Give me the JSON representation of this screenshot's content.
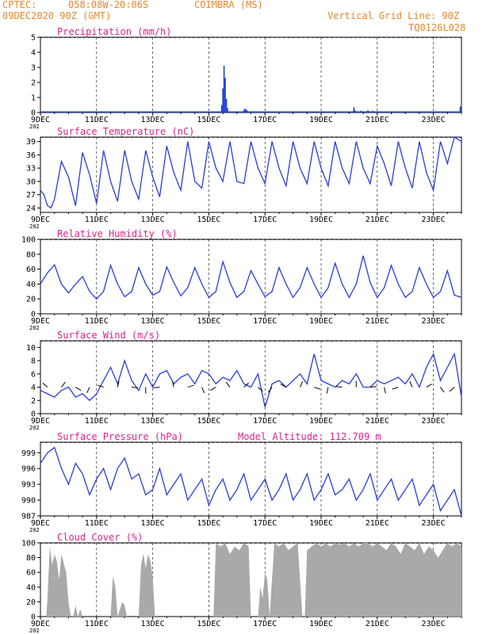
{
  "header": {
    "source": "CPTEC:",
    "coords": "058:08W-20:06S",
    "station": "COIMBRA (MS)",
    "run": "09DEC2020 90Z (GMT)",
    "grid_label": "Vertical Grid Line: 90Z",
    "code": "TQ0126L028"
  },
  "x_axis": {
    "hours_total": 360,
    "tick_labels": [
      "9DEC",
      "11DEC",
      "13DEC",
      "15DEC",
      "17DEC",
      "19DEC",
      "21DEC",
      "23DEC"
    ],
    "tick_hours": [
      0,
      48,
      96,
      144,
      192,
      240,
      288,
      336
    ],
    "year_stub": "202"
  },
  "chart_data": [
    {
      "id": "precipitation",
      "type": "bar",
      "title": "Precipitation (mm/h)",
      "ylim": [
        0,
        5
      ],
      "yticks": [
        0,
        1,
        2,
        3,
        4,
        5
      ],
      "bars": [
        {
          "x": 155.0,
          "y": 0.5
        },
        {
          "x": 156.0,
          "y": 1.6
        },
        {
          "x": 157.0,
          "y": 3.1
        },
        {
          "x": 158.0,
          "y": 2.3
        },
        {
          "x": 159.0,
          "y": 0.9
        },
        {
          "x": 160.0,
          "y": 0.3
        },
        {
          "x": 174.0,
          "y": 0.18
        },
        {
          "x": 175.0,
          "y": 0.25
        },
        {
          "x": 176.0,
          "y": 0.2
        },
        {
          "x": 177.0,
          "y": 0.12
        },
        {
          "x": 268.0,
          "y": 0.35
        },
        {
          "x": 269.0,
          "y": 0.15
        },
        {
          "x": 274.0,
          "y": 0.12
        },
        {
          "x": 280.0,
          "y": 0.15
        },
        {
          "x": 284.0,
          "y": 0.12
        },
        {
          "x": 359.0,
          "y": 0.4
        }
      ]
    },
    {
      "id": "temperature",
      "type": "line",
      "title": "Surface Temperature (nC)",
      "ylim": [
        23,
        40
      ],
      "yticks": [
        24,
        27,
        30,
        33,
        36,
        39
      ],
      "x": [
        0,
        3,
        6,
        9,
        12,
        18,
        24,
        30,
        36,
        42,
        48,
        54,
        60,
        66,
        72,
        78,
        84,
        90,
        96,
        102,
        108,
        114,
        120,
        126,
        132,
        138,
        144,
        150,
        156,
        162,
        168,
        174,
        180,
        186,
        192,
        198,
        204,
        210,
        216,
        222,
        228,
        234,
        240,
        246,
        252,
        258,
        264,
        270,
        276,
        282,
        288,
        294,
        300,
        306,
        312,
        318,
        324,
        330,
        336,
        342,
        348,
        354,
        360
      ],
      "values": [
        28,
        27,
        24.5,
        24,
        26,
        34.5,
        31,
        24.5,
        36.5,
        31.5,
        25,
        37,
        30,
        25.5,
        37,
        30,
        26,
        37,
        31,
        26.5,
        38,
        32,
        28,
        39,
        30,
        28.5,
        39,
        33,
        30,
        39,
        30,
        29.5,
        39,
        33,
        29.5,
        39,
        33,
        29,
        39,
        33,
        29.5,
        39,
        33,
        29,
        39,
        33,
        29.5,
        39,
        33,
        29.5,
        38,
        34,
        29,
        39,
        33,
        28.5,
        39,
        32,
        28,
        39,
        34,
        40,
        39
      ]
    },
    {
      "id": "humidity",
      "type": "line",
      "title": "Relative Humidity (%)",
      "ylim": [
        0,
        100
      ],
      "yticks": [
        0,
        20,
        40,
        60,
        80,
        100
      ],
      "x": [
        0,
        6,
        12,
        18,
        24,
        30,
        36,
        42,
        48,
        54,
        60,
        66,
        72,
        78,
        84,
        90,
        96,
        102,
        108,
        114,
        120,
        126,
        132,
        138,
        144,
        150,
        156,
        162,
        168,
        174,
        180,
        186,
        192,
        198,
        204,
        210,
        216,
        222,
        228,
        234,
        240,
        246,
        252,
        258,
        264,
        270,
        276,
        282,
        288,
        294,
        300,
        306,
        312,
        318,
        324,
        330,
        336,
        342,
        348,
        354,
        360
      ],
      "values": [
        40,
        55,
        66,
        40,
        28,
        40,
        50,
        30,
        20,
        30,
        65,
        40,
        23,
        30,
        62,
        40,
        25,
        30,
        63,
        42,
        24,
        35,
        62,
        40,
        22,
        30,
        70,
        42,
        22,
        30,
        58,
        40,
        23,
        30,
        62,
        40,
        22,
        35,
        62,
        40,
        22,
        35,
        68,
        40,
        22,
        40,
        78,
        42,
        22,
        35,
        65,
        40,
        22,
        30,
        62,
        40,
        22,
        30,
        58,
        25,
        22
      ]
    },
    {
      "id": "wind",
      "type": "line",
      "title": "Surface Wind (m/s)",
      "ylim": [
        0,
        11
      ],
      "yticks": [
        0,
        2,
        4,
        6,
        8,
        10
      ],
      "x": [
        0,
        6,
        12,
        18,
        24,
        30,
        36,
        42,
        48,
        54,
        60,
        66,
        72,
        78,
        84,
        90,
        96,
        102,
        108,
        114,
        120,
        126,
        132,
        138,
        144,
        150,
        156,
        162,
        168,
        174,
        180,
        186,
        192,
        198,
        204,
        210,
        216,
        222,
        228,
        234,
        240,
        246,
        252,
        258,
        264,
        270,
        276,
        282,
        288,
        294,
        300,
        306,
        312,
        318,
        324,
        330,
        336,
        342,
        348,
        354,
        360
      ],
      "values": [
        3.5,
        3,
        2.5,
        3.5,
        4,
        2.5,
        3,
        2,
        3,
        5,
        7,
        4.5,
        8,
        5,
        3.5,
        6,
        4,
        6,
        6.5,
        4.5,
        5.5,
        6,
        4.5,
        6.5,
        6,
        4.5,
        5.5,
        5,
        6.5,
        4.5,
        4,
        6,
        1,
        4.5,
        5,
        4,
        5,
        6,
        4.5,
        9,
        5,
        4.5,
        4,
        5,
        4.5,
        6,
        4,
        4,
        5,
        4.5,
        5,
        5.5,
        4.5,
        6,
        4,
        7,
        9,
        5,
        7,
        9,
        2.5
      ]
    },
    {
      "id": "pressure",
      "type": "line",
      "title": "Surface Pressure (hPa)",
      "subtitle": "Model Altitude: 112.709 m",
      "ylim": [
        987,
        1001
      ],
      "yticks": [
        987,
        990,
        993,
        996,
        999
      ],
      "x": [
        0,
        6,
        12,
        18,
        24,
        30,
        36,
        42,
        48,
        54,
        60,
        66,
        72,
        78,
        84,
        90,
        96,
        102,
        108,
        114,
        120,
        126,
        132,
        138,
        144,
        150,
        156,
        162,
        168,
        174,
        180,
        186,
        192,
        198,
        204,
        210,
        216,
        222,
        228,
        234,
        240,
        246,
        252,
        258,
        264,
        270,
        276,
        282,
        288,
        294,
        300,
        306,
        312,
        318,
        324,
        330,
        336,
        342,
        348,
        354,
        360
      ],
      "values": [
        997,
        999,
        1000,
        996,
        993,
        997,
        995,
        991,
        994,
        996,
        992,
        996,
        998,
        994,
        995,
        991,
        992,
        996,
        991,
        993,
        995,
        990,
        992,
        994,
        989,
        992,
        994,
        990,
        992,
        995,
        990,
        992,
        994,
        990,
        992,
        995,
        990,
        992,
        995,
        990,
        992,
        995,
        991,
        992,
        994,
        990,
        992,
        995,
        990,
        992,
        994,
        990,
        992,
        994,
        989,
        991,
        993,
        988,
        990,
        992,
        987
      ]
    },
    {
      "id": "cloud",
      "type": "area",
      "title": "Cloud Cover (%)",
      "ylim": [
        0,
        100
      ],
      "yticks": [
        0,
        20,
        40,
        60,
        80,
        100
      ],
      "x": [
        0,
        5,
        6,
        8,
        10,
        12,
        14,
        16,
        18,
        22,
        24,
        26,
        28,
        30,
        32,
        34,
        36,
        38,
        40,
        44,
        48,
        52,
        56,
        58,
        60,
        62,
        64,
        66,
        68,
        70,
        72,
        74,
        76,
        78,
        80,
        84,
        86,
        88,
        90,
        92,
        94,
        96,
        98,
        100,
        104,
        108,
        112,
        116,
        120,
        124,
        128,
        132,
        136,
        140,
        144,
        148,
        150,
        154,
        158,
        162,
        166,
        170,
        174,
        178,
        180,
        184,
        186,
        188,
        190,
        192,
        194,
        196,
        200,
        204,
        208,
        212,
        216,
        220,
        224,
        226,
        228,
        232,
        236,
        240,
        244,
        248,
        252,
        256,
        260,
        264,
        268,
        272,
        276,
        280,
        284,
        288,
        292,
        296,
        300,
        304,
        308,
        312,
        316,
        320,
        324,
        328,
        332,
        336,
        340,
        344,
        348,
        352,
        356,
        360
      ],
      "values": [
        0,
        0,
        25,
        95,
        70,
        85,
        75,
        50,
        85,
        60,
        20,
        0,
        0,
        15,
        0,
        10,
        0,
        0,
        0,
        0,
        0,
        0,
        0,
        0,
        0,
        55,
        40,
        0,
        10,
        20,
        15,
        0,
        0,
        0,
        0,
        0,
        70,
        85,
        65,
        85,
        75,
        55,
        0,
        0,
        0,
        0,
        0,
        0,
        0,
        0,
        0,
        0,
        0,
        0,
        0,
        0,
        100,
        95,
        100,
        85,
        95,
        90,
        100,
        95,
        0,
        0,
        0,
        40,
        25,
        60,
        50,
        0,
        100,
        95,
        100,
        90,
        95,
        100,
        0,
        0,
        90,
        95,
        100,
        95,
        100,
        95,
        100,
        98,
        100,
        95,
        100,
        95,
        100,
        100,
        95,
        100,
        95,
        90,
        100,
        95,
        85,
        100,
        95,
        90,
        100,
        85,
        95,
        90,
        80,
        90,
        100,
        95,
        100,
        95
      ]
    }
  ]
}
